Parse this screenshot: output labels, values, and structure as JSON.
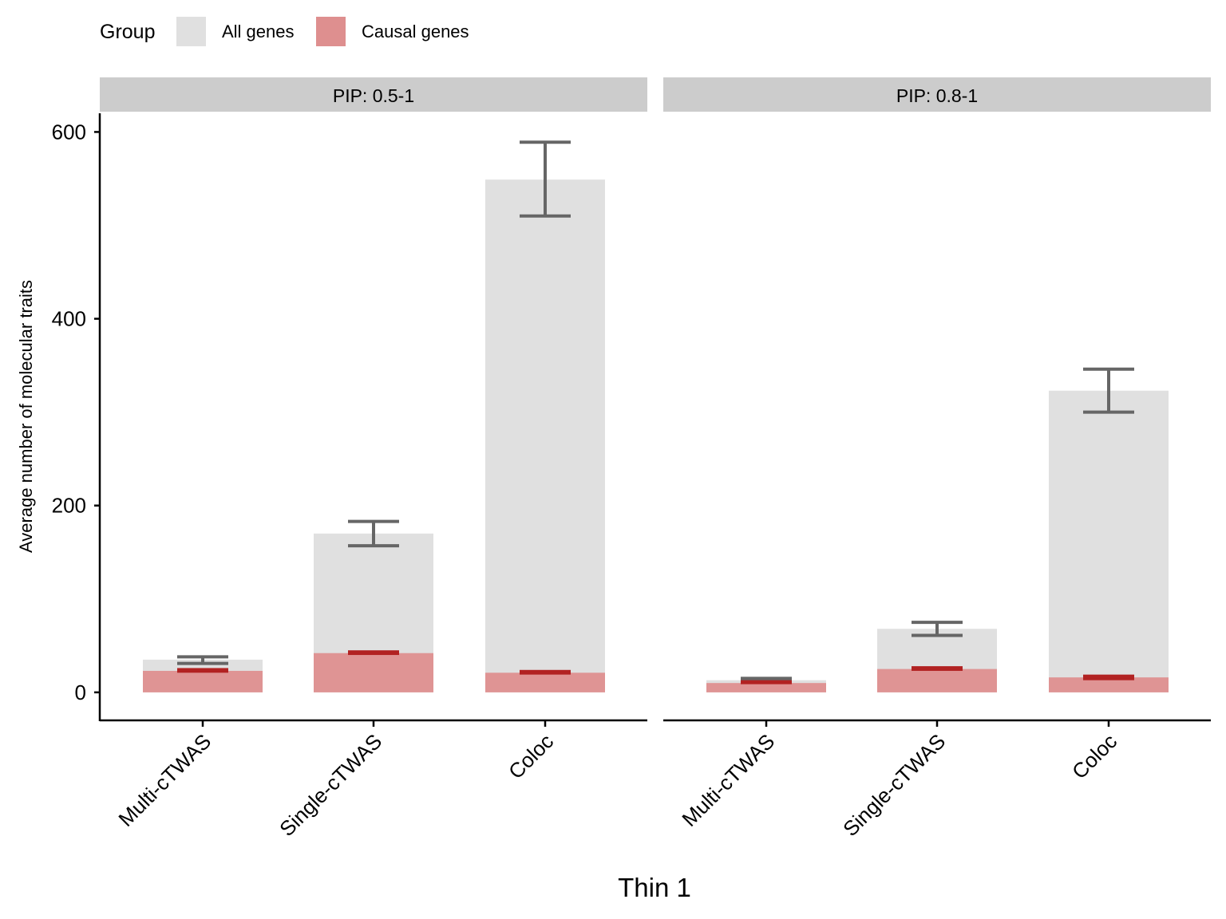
{
  "legend": {
    "title": "Group",
    "items": [
      {
        "label": "All genes",
        "color": "#e0e0e0"
      },
      {
        "label": "Causal genes",
        "color": "#de8f8f"
      }
    ]
  },
  "colors": {
    "all_fill": "#e0e0e0",
    "causal_fill": "#de8f8f",
    "all_error": "#666666",
    "causal_error": "#b22222",
    "strip_bg": "#cccccc"
  },
  "chart_data": {
    "type": "bar",
    "xlabel": "Thin 1",
    "ylabel": "Average number of molecular traits",
    "ylim": [
      -30,
      620
    ],
    "yticks": [
      0,
      200,
      400,
      600
    ],
    "categories": [
      "Multi-cTWAS",
      "Single-cTWAS",
      "Coloc"
    ],
    "grid": false,
    "legend_position": "top-left",
    "panels": [
      {
        "label": "PIP: 0.5-1",
        "series": [
          {
            "name": "All genes",
            "values": [
              35,
              170,
              549
            ],
            "error_low": [
              31,
              157,
              510
            ],
            "error_high": [
              38,
              183,
              589
            ]
          },
          {
            "name": "Causal genes",
            "values": [
              23,
              42,
              21
            ],
            "error_low": [
              21,
              40,
              19
            ],
            "error_high": [
              26,
              45,
              24
            ]
          }
        ]
      },
      {
        "label": "PIP: 0.8-1",
        "series": [
          {
            "name": "All genes",
            "values": [
              13,
              68,
              323
            ],
            "error_low": [
              12,
              61,
              300
            ],
            "error_high": [
              15,
              75,
              346
            ]
          },
          {
            "name": "Causal genes",
            "values": [
              10,
              25,
              16
            ],
            "error_low": [
              9,
              23,
              13
            ],
            "error_high": [
              13,
              28,
              19
            ]
          }
        ]
      }
    ]
  }
}
